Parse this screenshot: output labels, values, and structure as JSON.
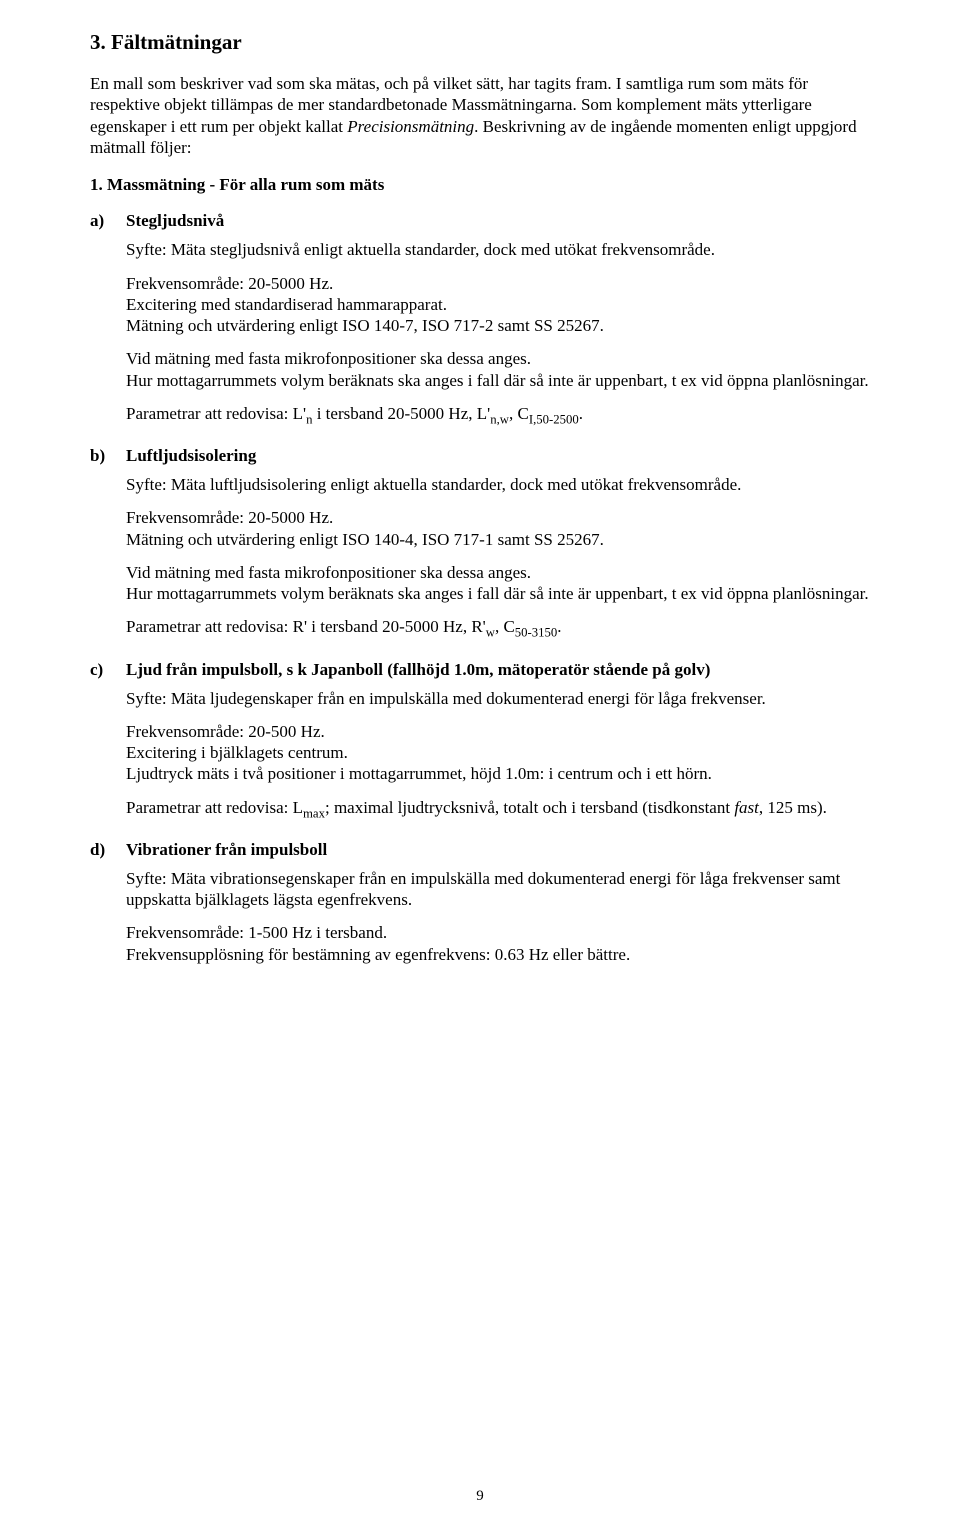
{
  "page_number": "9",
  "section": {
    "title": "3. Fältmätningar",
    "intro_p1_pre": "En mall som beskriver vad som ska mätas, och på vilket sätt, har tagits fram. I samtliga rum som mäts för respektive objekt tillämpas de mer standardbetonade Massmätningarna. Som komplement mäts ytterligare egenskaper i ett rum per objekt kallat ",
    "intro_p1_italic": "Precisionsmätning",
    "intro_p1_post": ". Beskrivning av de ingående momenten enligt uppgjord mätmall följer:",
    "subhead": "1. Massmätning - För alla rum som mäts"
  },
  "items": {
    "a": {
      "marker": "a)",
      "title": "Stegljudsnivå",
      "p1": "Syfte: Mäta stegljudsnivå enligt aktuella standarder, dock med utökat frekvensområde.",
      "p2": "Frekvensområde: 20-5000 Hz.",
      "p3": "Excitering med standardiserad hammarapparat.",
      "p4": "Mätning och utvärdering enligt ISO 140-7, ISO 717-2 samt SS 25267.",
      "p5": "Vid mätning med fasta mikrofonpositioner ska dessa anges.",
      "p6": "Hur mottagarrummets volym beräknats ska anges i fall där så inte är uppenbart, t ex vid öppna planlösningar.",
      "p7_pre": "Parametrar att redovisa: L'",
      "p7_sub1": "n",
      "p7_mid1": " i tersband 20-5000 Hz, L'",
      "p7_sub2": "n,w",
      "p7_mid2": ", C",
      "p7_sub3": "I,50-2500",
      "p7_post": "."
    },
    "b": {
      "marker": "b)",
      "title": "Luftljudsisolering",
      "p1": "Syfte: Mäta luftljudsisolering enligt aktuella standarder, dock med utökat frekvensområde.",
      "p2": "Frekvensområde: 20-5000 Hz.",
      "p3": "Mätning och utvärdering enligt ISO 140-4, ISO 717-1 samt SS 25267.",
      "p4": "Vid mätning med fasta mikrofonpositioner ska dessa anges.",
      "p5": "Hur mottagarrummets volym beräknats ska anges i fall där så inte är uppenbart, t ex vid öppna planlösningar.",
      "p6_pre": "Parametrar att redovisa: R' i tersband 20-5000 Hz, R'",
      "p6_sub1": "w",
      "p6_mid1": ", C",
      "p6_sub2": "50-3150",
      "p6_post": "."
    },
    "c": {
      "marker": "c)",
      "title": "Ljud från impulsboll, s k Japanboll (fallhöjd 1.0m, mätoperatör stående på golv)",
      "p1": "Syfte: Mäta ljudegenskaper från en impulskälla med dokumenterad energi för låga frekvenser.",
      "p2": "Frekvensområde: 20-500 Hz.",
      "p3": "Excitering i bjälklagets centrum.",
      "p4": "Ljudtryck mäts i två positioner i mottagarrummet, höjd 1.0m: i centrum och i ett hörn.",
      "p5_pre": "Parametrar att redovisa: L",
      "p5_sub1": "max",
      "p5_mid": "; maximal ljudtrycksnivå, totalt och i tersband (tisdkonstant ",
      "p5_italic": "fast",
      "p5_post": ", 125 ms)."
    },
    "d": {
      "marker": "d)",
      "title": "Vibrationer från impulsboll",
      "p1": "Syfte: Mäta vibrationsegenskaper från en impulskälla med dokumenterad energi för låga frekvenser samt uppskatta bjälklagets lägsta egenfrekvens.",
      "p2": "Frekvensområde: 1-500 Hz i tersband.",
      "p3": "Frekvensupplösning för bestämning av egenfrekvens: 0.63 Hz eller bättre."
    }
  }
}
